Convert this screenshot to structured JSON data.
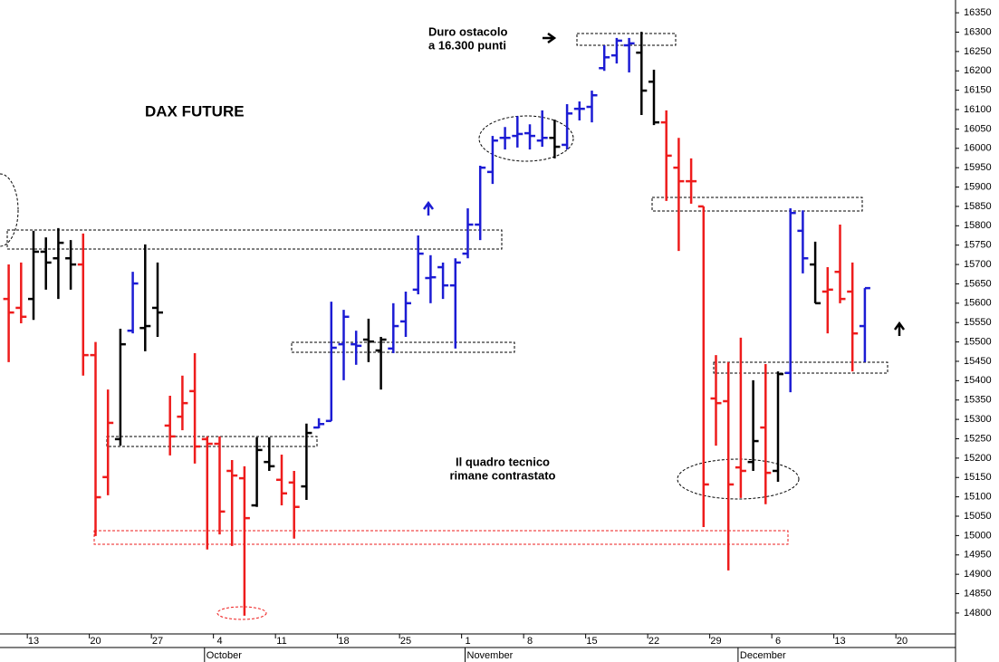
{
  "chart_data": {
    "type": "ohlc",
    "title": "DAX FUTURE",
    "annotations": [
      [
        "Duro ostacolo",
        "a 16.300 punti"
      ],
      [
        "Il quadro tecnico",
        "rimane contrastato"
      ]
    ],
    "categories": [
      null,
      null,
      "13",
      null,
      null,
      null,
      null,
      "20",
      null,
      null,
      null,
      null,
      "27",
      null,
      null,
      null,
      null,
      "4",
      null,
      null,
      null,
      null,
      "11",
      null,
      null,
      null,
      null,
      "18",
      null,
      null,
      null,
      null,
      "25",
      null,
      null,
      null,
      null,
      "1",
      null,
      null,
      null,
      null,
      "8",
      null,
      null,
      null,
      null,
      "15",
      null,
      null,
      null,
      null,
      "22",
      null,
      null,
      null,
      null,
      "29",
      null,
      null,
      null,
      null,
      "6",
      null,
      null,
      null,
      null,
      "13",
      null,
      null,
      null,
      null,
      "20"
    ],
    "months": [
      null,
      null,
      null,
      null,
      null,
      null,
      null,
      null,
      null,
      null,
      null,
      null,
      null,
      null,
      null,
      null,
      "October",
      null,
      null,
      null,
      null,
      null,
      null,
      null,
      null,
      null,
      null,
      null,
      null,
      null,
      null,
      null,
      null,
      null,
      null,
      null,
      null,
      "November",
      null,
      null,
      null,
      null,
      null,
      null,
      null,
      null,
      null,
      null,
      null,
      null,
      null,
      null,
      null,
      null,
      null,
      null,
      null,
      null,
      null,
      "December",
      null,
      null,
      null,
      null,
      null,
      null,
      null,
      null,
      null,
      null,
      null,
      null,
      null
    ],
    "open": [
      15611,
      15588,
      15611,
      15733,
      15716,
      15716,
      15700,
      15466,
      15151,
      15249,
      15529,
      15536,
      15588,
      15284,
      15307,
      15373,
      15249,
      15237,
      15167,
      15148,
      15078,
      15190,
      15144,
      15137,
      15127,
      15279,
      15296,
      15494,
      15494,
      15506,
      15478,
      15483,
      15553,
      15635,
      15665,
      15693,
      15646,
      15728,
      15803,
      15939,
      16027,
      16032,
      16039,
      16020,
      16027,
      16009,
      16102,
      16107,
      16207,
      16240,
      16266,
      16247,
      16172,
      16067,
      15950,
      15915,
      15850,
      15354,
      15347,
      15176,
      15190,
      15279,
      15167,
      15420,
      15787,
      15700,
      15630,
      15681,
      15630,
      15541,
      null,
      null,
      null
    ],
    "high": [
      15700,
      15705,
      15787,
      15770,
      15794,
      15763,
      15780,
      15500,
      15377,
      15534,
      15681,
      15752,
      15705,
      15361,
      15413,
      15471,
      15256,
      15256,
      15195,
      15179,
      15254,
      15254,
      15209,
      15167,
      15289,
      15303,
      15604,
      15583,
      15529,
      15560,
      15513,
      15600,
      15630,
      15775,
      15724,
      15705,
      15716,
      15845,
      15955,
      16032,
      16055,
      16083,
      16062,
      16098,
      16074,
      16114,
      16121,
      16149,
      16266,
      16285,
      16285,
      16301,
      16203,
      16098,
      16027,
      15974,
      15850,
      15466,
      15448,
      15511,
      15401,
      15443,
      15424,
      15845,
      15840,
      15759,
      15693,
      15803,
      15705,
      15639,
      null,
      null,
      null
    ],
    "low": [
      15448,
      15548,
      15557,
      15635,
      15611,
      15635,
      15413,
      14999,
      15104,
      15232,
      15522,
      15476,
      15513,
      15207,
      15272,
      15186,
      14964,
      15003,
      14973,
      14793,
      15074,
      15167,
      15078,
      14992,
      15092,
      15277,
      15296,
      15401,
      15441,
      15448,
      15377,
      15471,
      15513,
      15623,
      15600,
      15611,
      15483,
      15716,
      15763,
      15908,
      15997,
      16002,
      15997,
      16004,
      15974,
      15997,
      16072,
      16067,
      16200,
      16219,
      16196,
      16086,
      16060,
      15864,
      15735,
      15857,
      15022,
      15232,
      14910,
      15097,
      15167,
      15081,
      15139,
      15370,
      15677,
      15600,
      15522,
      15600,
      15424,
      15448,
      null,
      null,
      null
    ],
    "close": [
      15576,
      15565,
      15733,
      15705,
      15756,
      15700,
      15466,
      15099,
      15291,
      15494,
      15651,
      15541,
      15576,
      15256,
      15342,
      15230,
      15237,
      15062,
      15155,
      15045,
      15221,
      15179,
      15109,
      15074,
      15265,
      15288,
      15485,
      15565,
      15490,
      15501,
      15506,
      15541,
      15600,
      15728,
      15667,
      15646,
      15705,
      15803,
      15950,
      16020,
      16027,
      16037,
      16032,
      16027,
      16004,
      16090,
      16102,
      16137,
      16235,
      16278,
      16271,
      16149,
      16067,
      15981,
      15915,
      15915,
      15132,
      15342,
      15132,
      15167,
      15244,
      15162,
      15417,
      15833,
      15716,
      15600,
      15635,
      15611,
      15522,
      15639,
      null,
      null,
      null
    ],
    "colors": [
      "#ee1c1c",
      "#ee1c1c",
      "#000000",
      "#000000",
      "#000000",
      "#000000",
      "#ee1c1c",
      "#ee1c1c",
      "#ee1c1c",
      "#000000",
      "#1c1cd4",
      "#000000",
      "#000000",
      "#ee1c1c",
      "#ee1c1c",
      "#ee1c1c",
      "#ee1c1c",
      "#ee1c1c",
      "#ee1c1c",
      "#ee1c1c",
      "#000000",
      "#000000",
      "#ee1c1c",
      "#ee1c1c",
      "#000000",
      "#1c1cd4",
      "#1c1cd4",
      "#1c1cd4",
      "#1c1cd4",
      "#000000",
      "#000000",
      "#1c1cd4",
      "#1c1cd4",
      "#1c1cd4",
      "#1c1cd4",
      "#1c1cd4",
      "#1c1cd4",
      "#1c1cd4",
      "#1c1cd4",
      "#1c1cd4",
      "#1c1cd4",
      "#1c1cd4",
      "#1c1cd4",
      "#1c1cd4",
      "#000000",
      "#1c1cd4",
      "#1c1cd4",
      "#1c1cd4",
      "#1c1cd4",
      "#1c1cd4",
      "#1c1cd4",
      "#000000",
      "#000000",
      "#ee1c1c",
      "#ee1c1c",
      "#ee1c1c",
      "#ee1c1c",
      "#ee1c1c",
      "#ee1c1c",
      "#ee1c1c",
      "#000000",
      "#ee1c1c",
      "#000000",
      "#1c1cd4",
      "#1c1cd4",
      "#000000",
      "#ee1c1c",
      "#ee1c1c",
      "#ee1c1c",
      "#1c1cd4",
      null,
      null,
      null
    ],
    "ylim": [
      14746,
      16383
    ],
    "yticks": [
      14800,
      14850,
      14900,
      14950,
      15000,
      15050,
      15100,
      15150,
      15200,
      15250,
      15300,
      15350,
      15400,
      15450,
      15500,
      15550,
      15600,
      15650,
      15700,
      15750,
      15800,
      15850,
      15900,
      15950,
      16000,
      16050,
      16100,
      16150,
      16200,
      16250,
      16300,
      16350
    ],
    "y_axis_side": "right"
  }
}
